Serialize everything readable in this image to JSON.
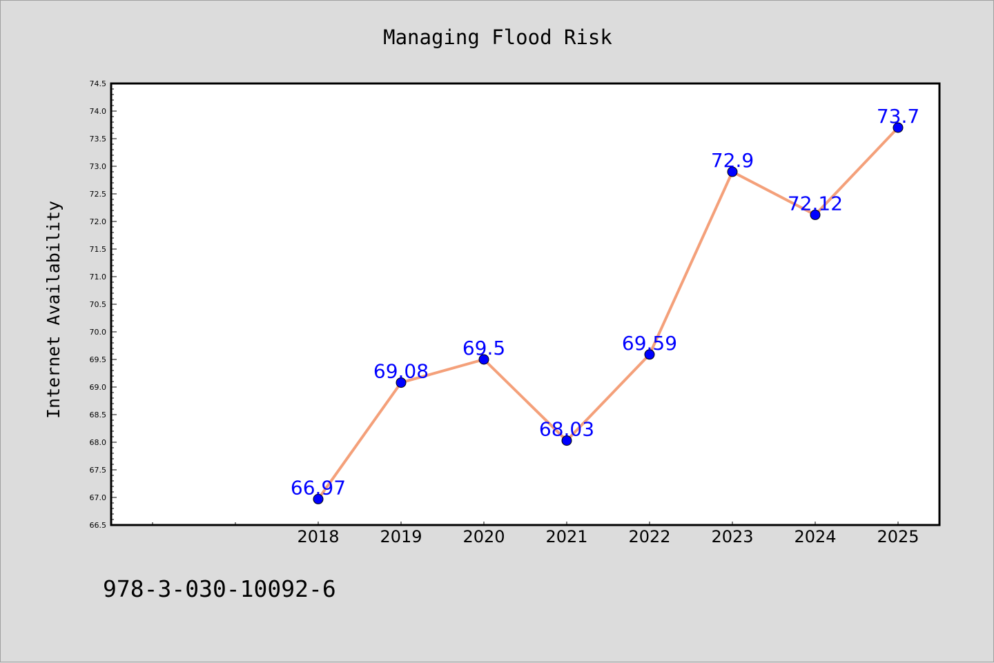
{
  "chart_data": {
    "type": "line",
    "title": "Managing Flood Risk",
    "xlabel": "",
    "ylabel": "Internet Availability",
    "x": [
      "2018",
      "2019",
      "2020",
      "2021",
      "2022",
      "2023",
      "2024",
      "2025"
    ],
    "series": [
      {
        "values": [
          66.97,
          69.08,
          69.5,
          68.03,
          69.59,
          72.9,
          72.12,
          73.7
        ],
        "labels": [
          "66.97",
          "69.08",
          "69.5",
          "68.03",
          "69.59",
          "72.9",
          "72.12",
          "73.7"
        ]
      }
    ],
    "ylim": [
      66.5,
      74.5
    ],
    "yticks": [
      "66.5",
      "67.0",
      "67.5",
      "68.0",
      "68.5",
      "69.0",
      "69.5",
      "70.0",
      "70.5",
      "71.0",
      "71.5",
      "72.0",
      "72.5",
      "73.0",
      "73.5",
      "74.0",
      "74.5"
    ],
    "grid": false,
    "line_color": "#f4a07a",
    "marker_color": "#0000ff",
    "label_color": "#0000ff"
  },
  "footer": {
    "isbn": "978-3-030-10092-6"
  }
}
